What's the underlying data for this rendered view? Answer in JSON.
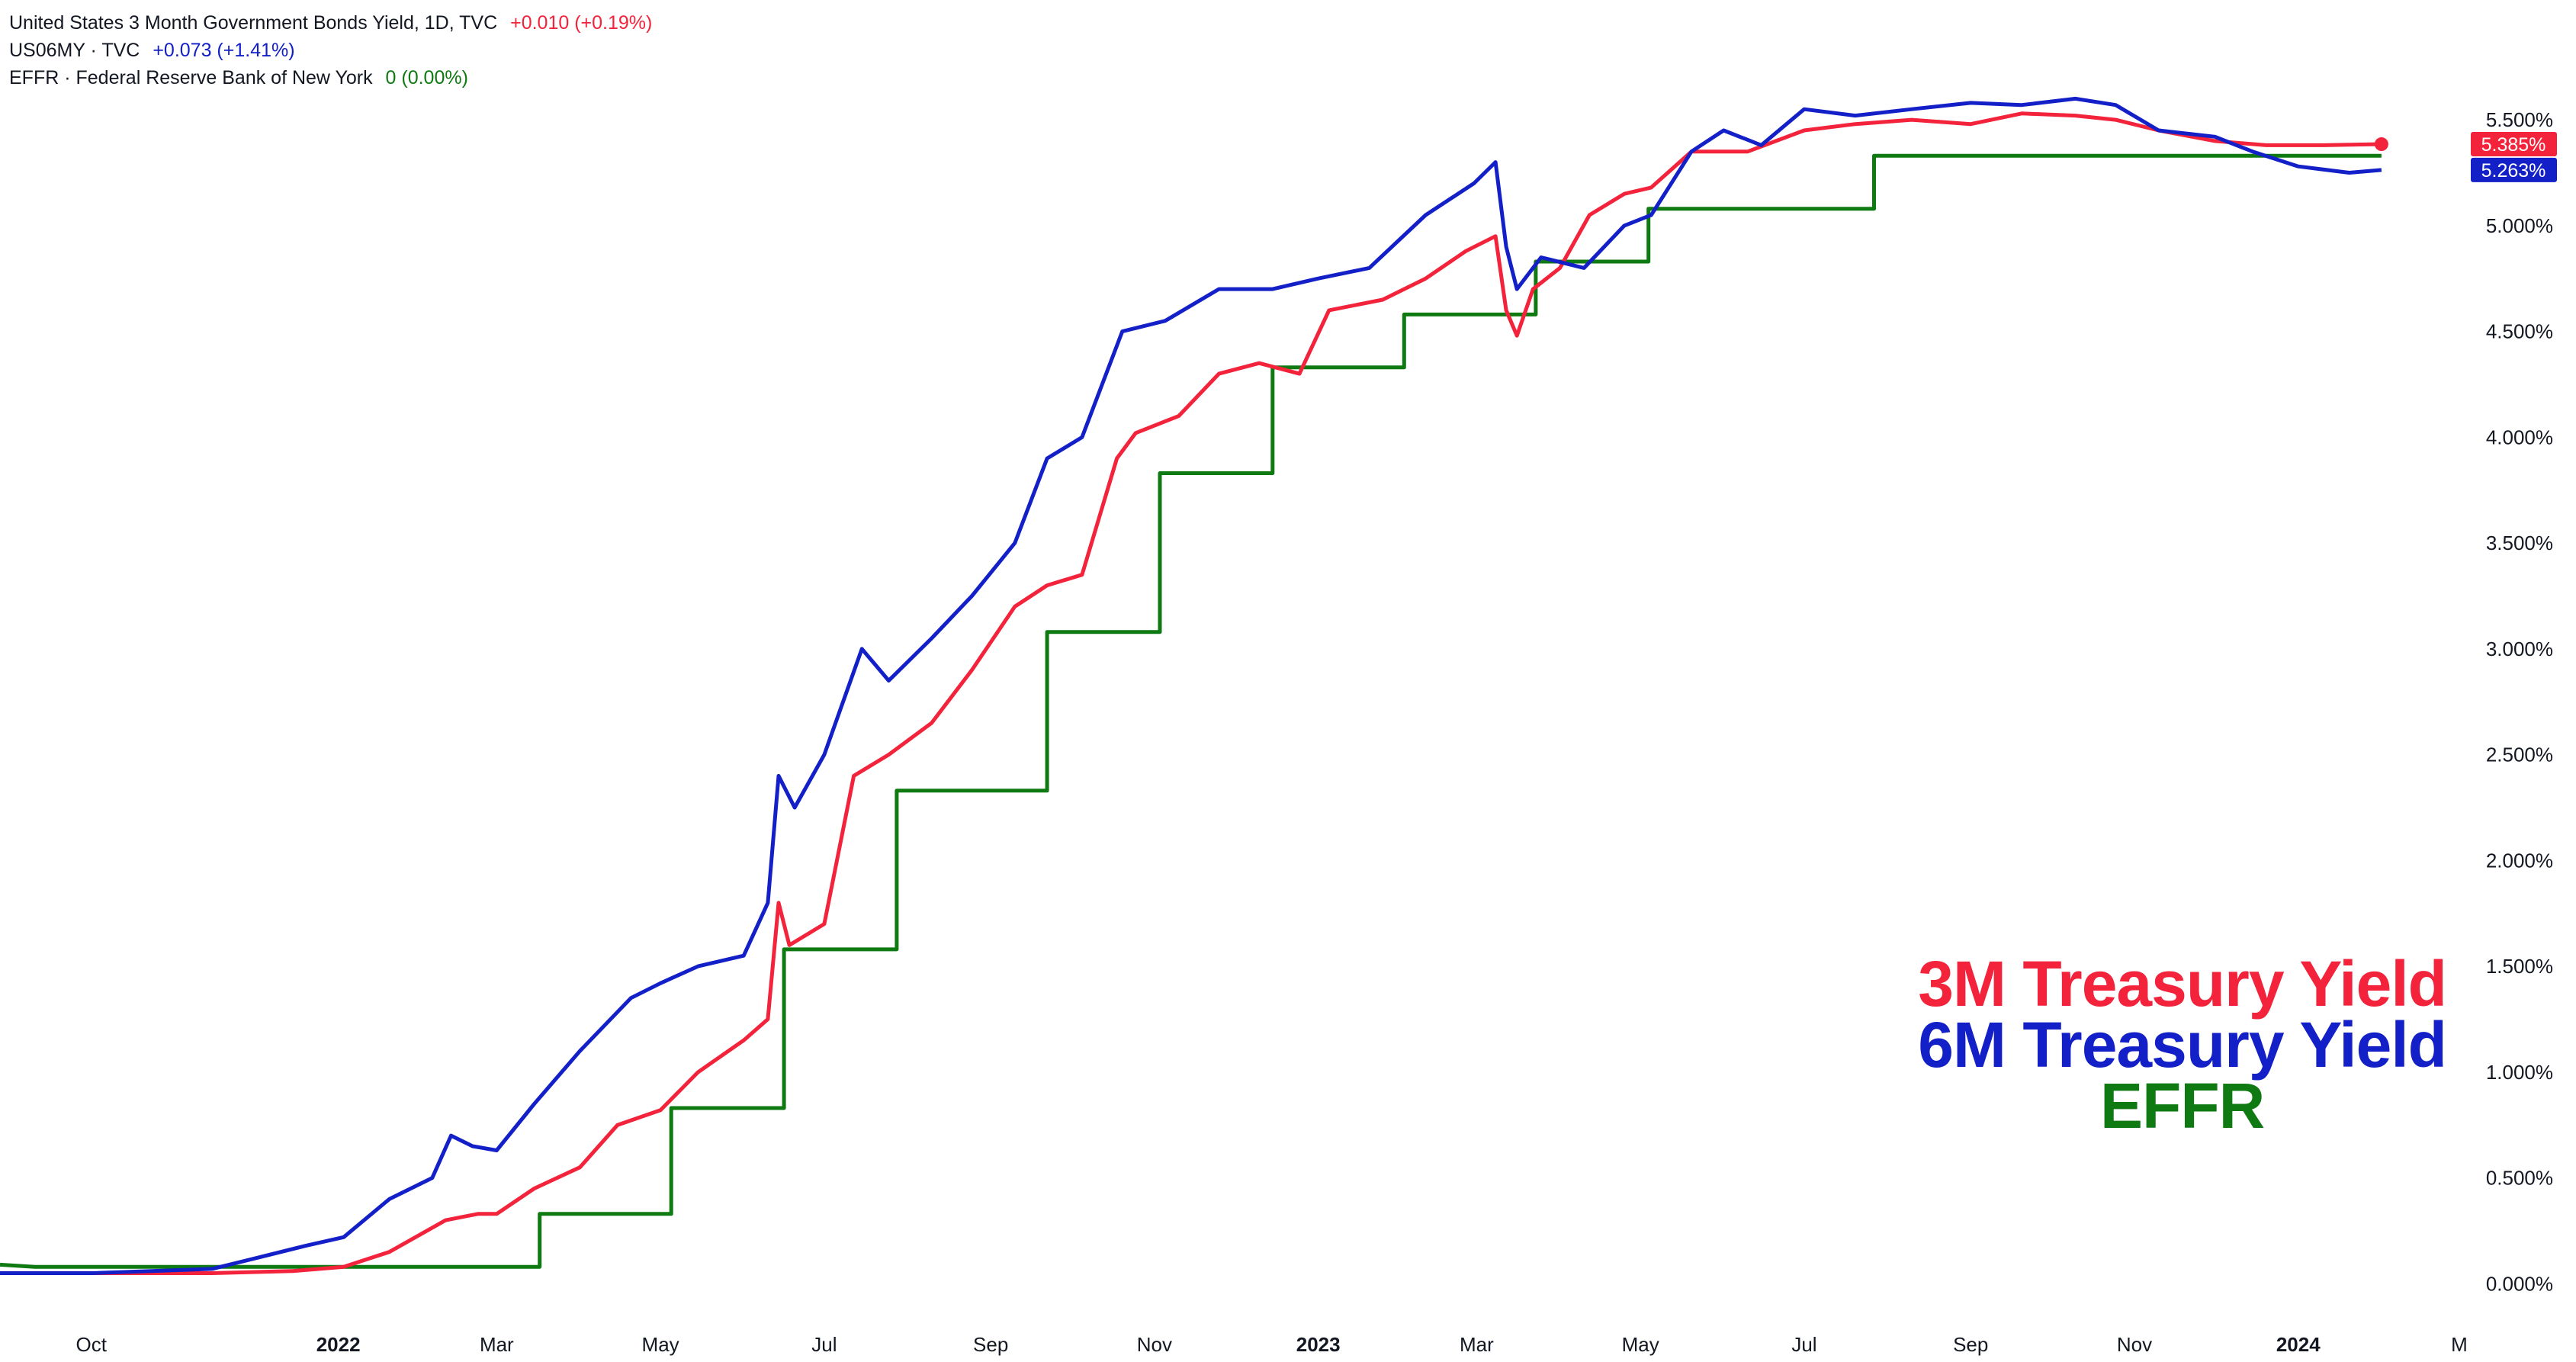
{
  "legend": {
    "rows": [
      {
        "name": "United States 3 Month Government Bonds Yield, 1D, TVC",
        "change": "+0.010 (+0.19%)",
        "color": "#f2233b"
      },
      {
        "name": "US06MY · TVC",
        "change": "+0.073 (+1.41%)",
        "color": "#1320c8"
      },
      {
        "name": "EFFR · Federal Reserve Bank of New York",
        "change": "0 (0.00%)",
        "color": "#0f7a12"
      }
    ]
  },
  "big_labels": {
    "line1": "3M Treasury Yield",
    "line2": "6M Treasury Yield",
    "line3": "EFFR"
  },
  "chart_data": {
    "type": "line",
    "x_ticks": [
      {
        "label": "Oct",
        "date": "2021-10-01",
        "bold": false
      },
      {
        "label": "2022",
        "date": "2022-01-01",
        "bold": true
      },
      {
        "label": "Mar",
        "date": "2022-03-01",
        "bold": false
      },
      {
        "label": "May",
        "date": "2022-05-01",
        "bold": false
      },
      {
        "label": "Jul",
        "date": "2022-07-01",
        "bold": false
      },
      {
        "label": "Sep",
        "date": "2022-09-01",
        "bold": false
      },
      {
        "label": "Nov",
        "date": "2022-11-01",
        "bold": false
      },
      {
        "label": "2023",
        "date": "2023-01-01",
        "bold": true
      },
      {
        "label": "Mar",
        "date": "2023-03-01",
        "bold": false
      },
      {
        "label": "May",
        "date": "2023-05-01",
        "bold": false
      },
      {
        "label": "Jul",
        "date": "2023-07-01",
        "bold": false
      },
      {
        "label": "Sep",
        "date": "2023-09-01",
        "bold": false
      },
      {
        "label": "Nov",
        "date": "2023-11-01",
        "bold": false
      },
      {
        "label": "2024",
        "date": "2024-01-01",
        "bold": true
      },
      {
        "label": "M",
        "date": "2024-03-01",
        "bold": false
      }
    ],
    "y_ticks": [
      "0.000%",
      "0.500%",
      "1.000%",
      "1.500%",
      "2.000%",
      "2.500%",
      "3.000%",
      "3.500%",
      "4.000%",
      "4.500%",
      "5.000%",
      "5.500%"
    ],
    "y_tick_values": [
      0,
      0.5,
      1.0,
      1.5,
      2.0,
      2.5,
      3.0,
      3.5,
      4.0,
      4.5,
      5.0,
      5.5
    ],
    "ylim": [
      -0.06,
      5.85
    ],
    "xlim": [
      "2021-08-28",
      "2024-03-01"
    ],
    "series": [
      {
        "name": "United States 3 Month Government Bonds Yield",
        "color": "#f2233b",
        "last_label": "5.385%",
        "points": [
          [
            "2021-08-28",
            0.05
          ],
          [
            "2021-10-01",
            0.05
          ],
          [
            "2021-11-15",
            0.05
          ],
          [
            "2021-12-15",
            0.06
          ],
          [
            "2022-01-03",
            0.08
          ],
          [
            "2022-01-20",
            0.15
          ],
          [
            "2022-02-10",
            0.3
          ],
          [
            "2022-02-22",
            0.33
          ],
          [
            "2022-03-01",
            0.33
          ],
          [
            "2022-03-15",
            0.45
          ],
          [
            "2022-04-01",
            0.55
          ],
          [
            "2022-04-15",
            0.75
          ],
          [
            "2022-05-01",
            0.82
          ],
          [
            "2022-05-15",
            1.0
          ],
          [
            "2022-06-01",
            1.15
          ],
          [
            "2022-06-10",
            1.25
          ],
          [
            "2022-06-14",
            1.8
          ],
          [
            "2022-06-18",
            1.6
          ],
          [
            "2022-07-01",
            1.7
          ],
          [
            "2022-07-12",
            2.4
          ],
          [
            "2022-07-25",
            2.5
          ],
          [
            "2022-08-10",
            2.65
          ],
          [
            "2022-08-25",
            2.9
          ],
          [
            "2022-09-10",
            3.2
          ],
          [
            "2022-09-22",
            3.3
          ],
          [
            "2022-10-05",
            3.35
          ],
          [
            "2022-10-18",
            3.9
          ],
          [
            "2022-10-25",
            4.02
          ],
          [
            "2022-11-10",
            4.1
          ],
          [
            "2022-11-25",
            4.3
          ],
          [
            "2022-12-10",
            4.35
          ],
          [
            "2022-12-25",
            4.3
          ],
          [
            "2023-01-05",
            4.6
          ],
          [
            "2023-01-25",
            4.65
          ],
          [
            "2023-02-10",
            4.75
          ],
          [
            "2023-02-25",
            4.88
          ],
          [
            "2023-03-08",
            4.95
          ],
          [
            "2023-03-12",
            4.6
          ],
          [
            "2023-03-16",
            4.48
          ],
          [
            "2023-03-22",
            4.7
          ],
          [
            "2023-04-01",
            4.8
          ],
          [
            "2023-04-12",
            5.05
          ],
          [
            "2023-04-25",
            5.15
          ],
          [
            "2023-05-05",
            5.18
          ],
          [
            "2023-05-20",
            5.35
          ],
          [
            "2023-06-10",
            5.35
          ],
          [
            "2023-07-01",
            5.45
          ],
          [
            "2023-07-20",
            5.48
          ],
          [
            "2023-08-10",
            5.5
          ],
          [
            "2023-09-01",
            5.48
          ],
          [
            "2023-09-20",
            5.53
          ],
          [
            "2023-10-10",
            5.52
          ],
          [
            "2023-10-25",
            5.5
          ],
          [
            "2023-11-10",
            5.45
          ],
          [
            "2023-12-01",
            5.4
          ],
          [
            "2023-12-20",
            5.38
          ],
          [
            "2024-01-10",
            5.38
          ],
          [
            "2024-02-01",
            5.385
          ]
        ]
      },
      {
        "name": "US06MY",
        "color": "#1320c8",
        "last_label": "5.263%",
        "points": [
          [
            "2021-08-28",
            0.05
          ],
          [
            "2021-10-01",
            0.05
          ],
          [
            "2021-11-15",
            0.07
          ],
          [
            "2021-12-01",
            0.12
          ],
          [
            "2021-12-20",
            0.18
          ],
          [
            "2022-01-03",
            0.22
          ],
          [
            "2022-01-20",
            0.4
          ],
          [
            "2022-02-05",
            0.5
          ],
          [
            "2022-02-12",
            0.7
          ],
          [
            "2022-02-20",
            0.65
          ],
          [
            "2022-03-01",
            0.63
          ],
          [
            "2022-03-15",
            0.85
          ],
          [
            "2022-04-01",
            1.1
          ],
          [
            "2022-04-20",
            1.35
          ],
          [
            "2022-05-01",
            1.42
          ],
          [
            "2022-05-15",
            1.5
          ],
          [
            "2022-06-01",
            1.55
          ],
          [
            "2022-06-10",
            1.8
          ],
          [
            "2022-06-14",
            2.4
          ],
          [
            "2022-06-20",
            2.25
          ],
          [
            "2022-07-01",
            2.5
          ],
          [
            "2022-07-15",
            3.0
          ],
          [
            "2022-07-25",
            2.85
          ],
          [
            "2022-08-10",
            3.05
          ],
          [
            "2022-08-25",
            3.25
          ],
          [
            "2022-09-10",
            3.5
          ],
          [
            "2022-09-22",
            3.9
          ],
          [
            "2022-10-05",
            4.0
          ],
          [
            "2022-10-20",
            4.5
          ],
          [
            "2022-11-05",
            4.55
          ],
          [
            "2022-11-25",
            4.7
          ],
          [
            "2022-12-15",
            4.7
          ],
          [
            "2023-01-01",
            4.75
          ],
          [
            "2023-01-20",
            4.8
          ],
          [
            "2023-02-10",
            5.05
          ],
          [
            "2023-02-28",
            5.2
          ],
          [
            "2023-03-08",
            5.3
          ],
          [
            "2023-03-12",
            4.9
          ],
          [
            "2023-03-16",
            4.7
          ],
          [
            "2023-03-25",
            4.85
          ],
          [
            "2023-04-10",
            4.8
          ],
          [
            "2023-04-25",
            5.0
          ],
          [
            "2023-05-05",
            5.05
          ],
          [
            "2023-05-20",
            5.35
          ],
          [
            "2023-06-01",
            5.45
          ],
          [
            "2023-06-15",
            5.38
          ],
          [
            "2023-07-01",
            5.55
          ],
          [
            "2023-07-20",
            5.52
          ],
          [
            "2023-08-10",
            5.55
          ],
          [
            "2023-09-01",
            5.58
          ],
          [
            "2023-09-20",
            5.57
          ],
          [
            "2023-10-10",
            5.6
          ],
          [
            "2023-10-25",
            5.57
          ],
          [
            "2023-11-10",
            5.45
          ],
          [
            "2023-12-01",
            5.42
          ],
          [
            "2023-12-15",
            5.35
          ],
          [
            "2024-01-01",
            5.28
          ],
          [
            "2024-01-20",
            5.25
          ],
          [
            "2024-02-01",
            5.263
          ]
        ]
      },
      {
        "name": "EFFR",
        "color": "#0f7a12",
        "points": [
          [
            "2021-08-28",
            0.09
          ],
          [
            "2021-09-10",
            0.08
          ],
          [
            "2022-03-17",
            0.08
          ],
          [
            "2022-03-17",
            0.33
          ],
          [
            "2022-05-05",
            0.33
          ],
          [
            "2022-05-05",
            0.83
          ],
          [
            "2022-06-16",
            0.83
          ],
          [
            "2022-06-16",
            1.58
          ],
          [
            "2022-07-28",
            1.58
          ],
          [
            "2022-07-28",
            2.33
          ],
          [
            "2022-09-22",
            2.33
          ],
          [
            "2022-09-22",
            3.08
          ],
          [
            "2022-11-03",
            3.08
          ],
          [
            "2022-11-03",
            3.83
          ],
          [
            "2022-12-15",
            3.83
          ],
          [
            "2022-12-15",
            4.33
          ],
          [
            "2023-02-02",
            4.33
          ],
          [
            "2023-02-02",
            4.58
          ],
          [
            "2023-03-23",
            4.58
          ],
          [
            "2023-03-23",
            4.83
          ],
          [
            "2023-05-04",
            4.83
          ],
          [
            "2023-05-04",
            5.08
          ],
          [
            "2023-07-27",
            5.08
          ],
          [
            "2023-07-27",
            5.33
          ],
          [
            "2024-02-01",
            5.33
          ]
        ]
      }
    ]
  }
}
